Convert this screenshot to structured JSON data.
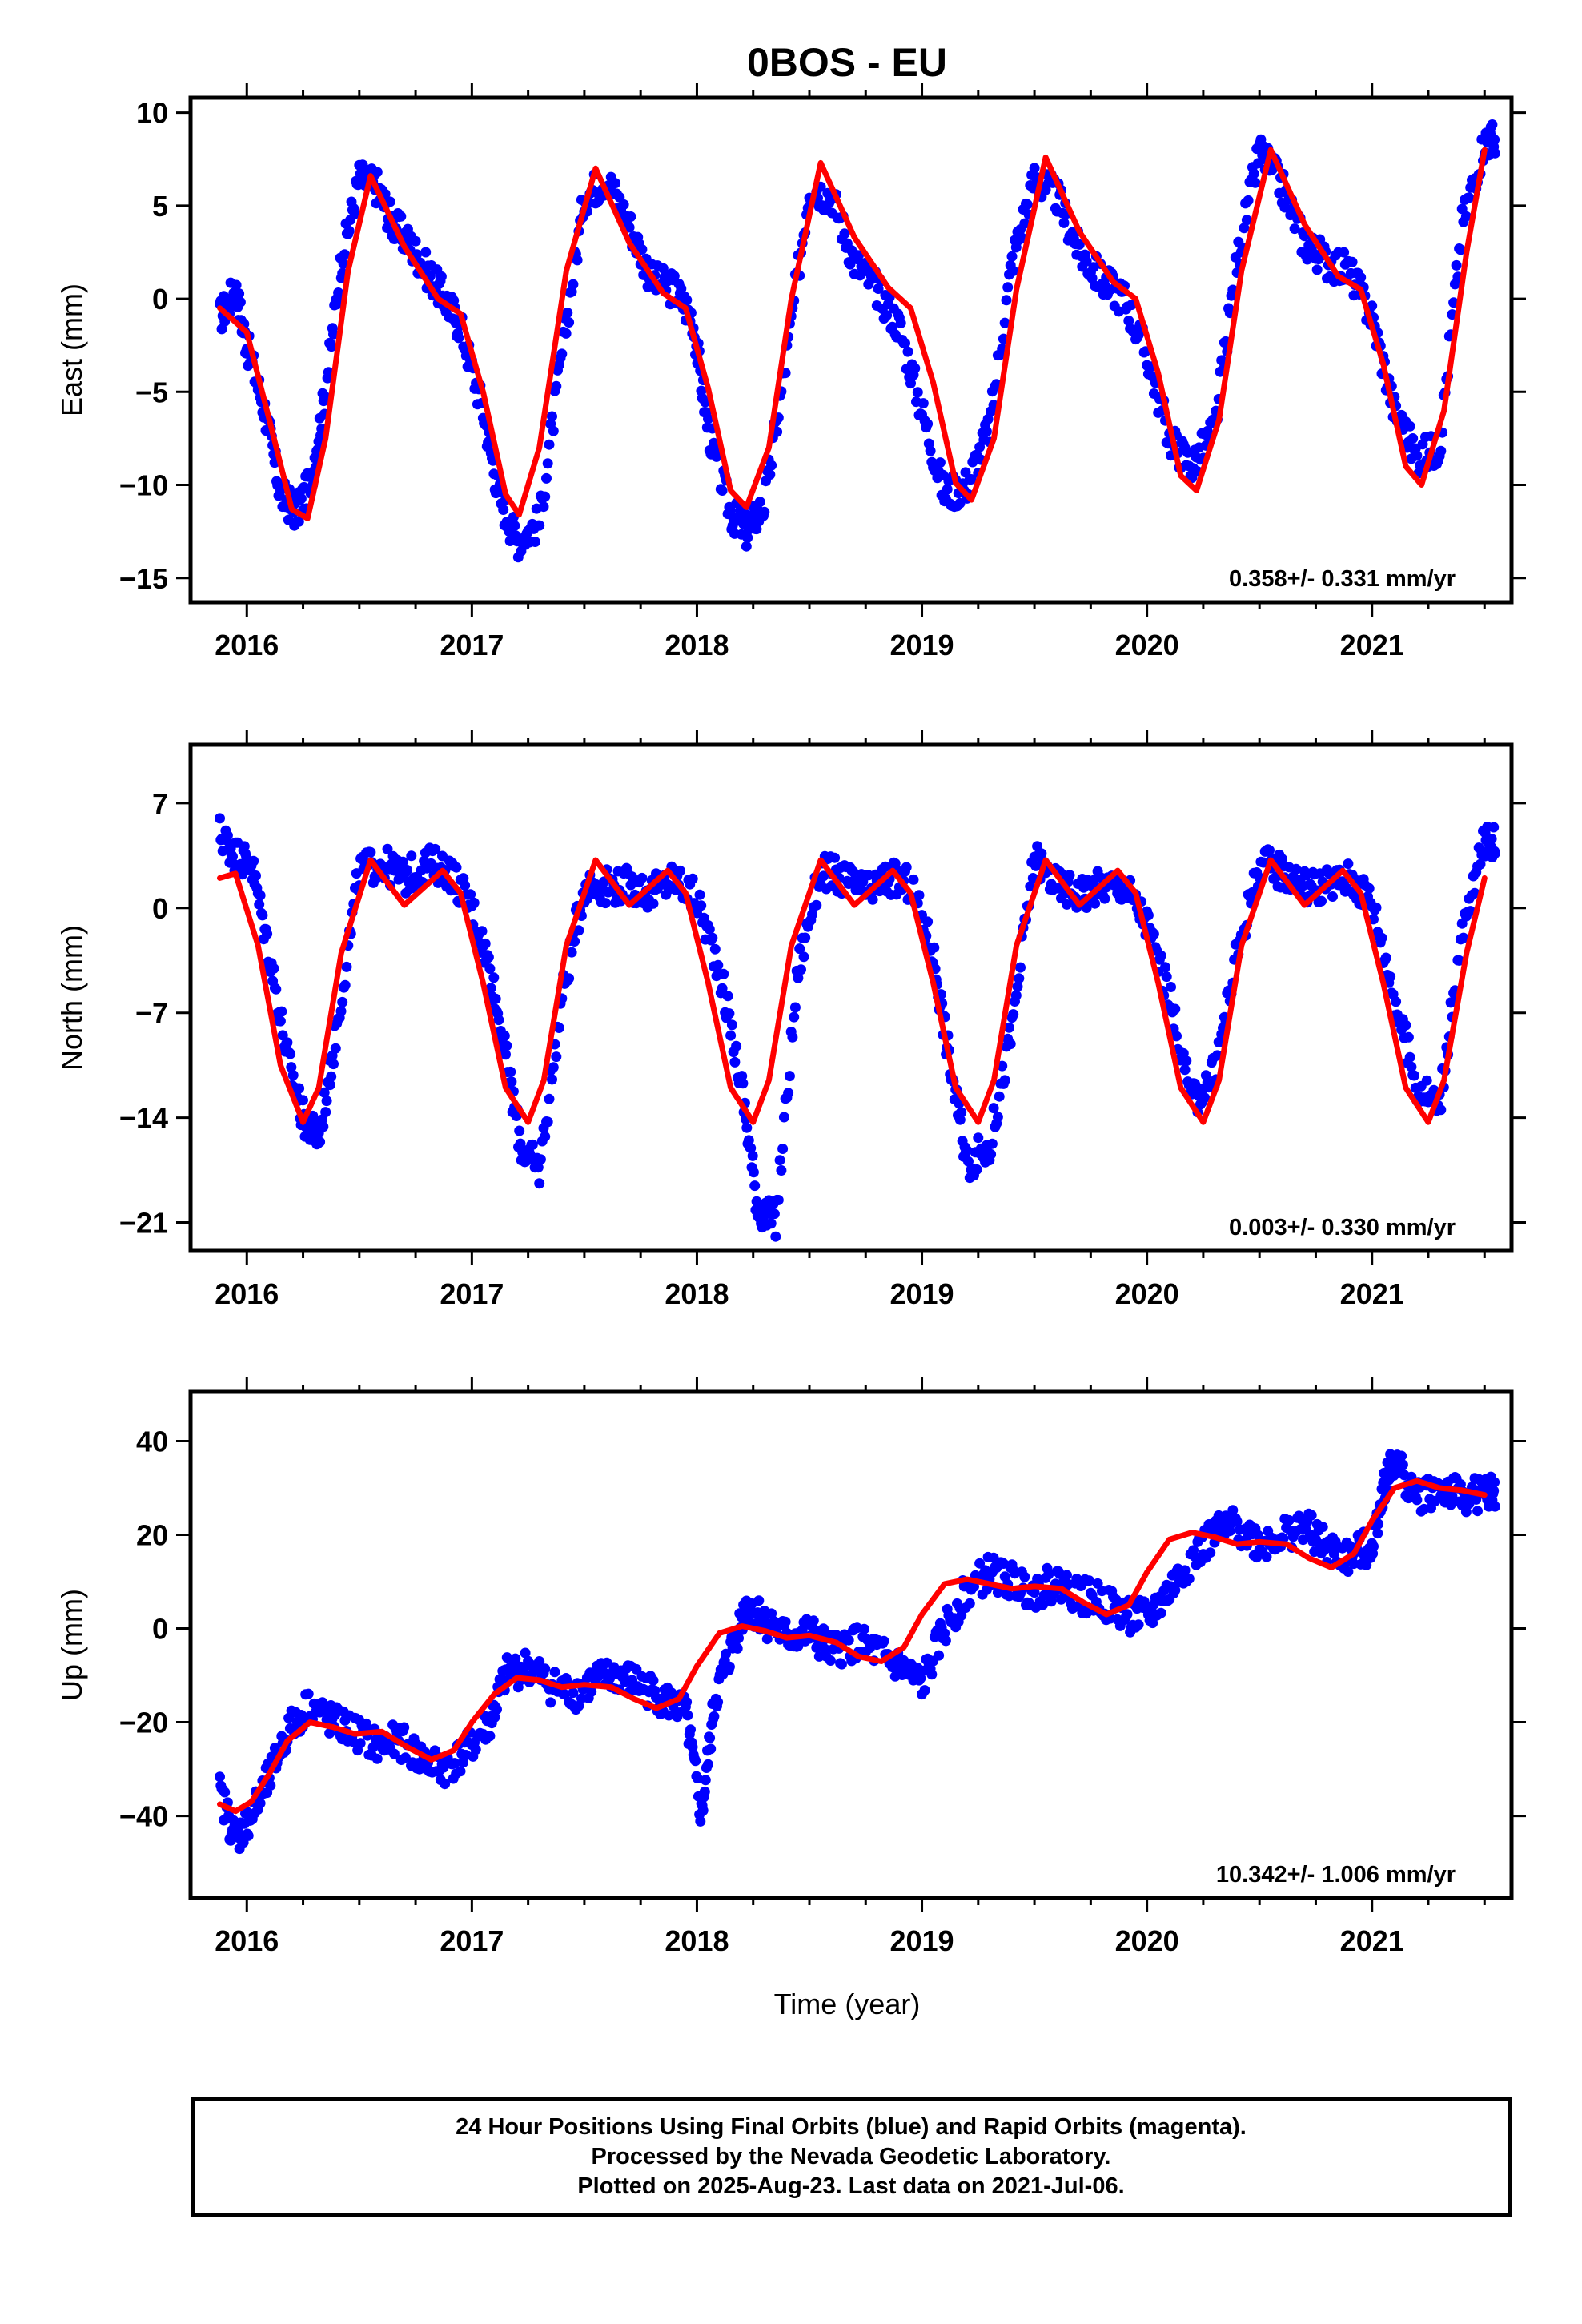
{
  "title": "0BOS - EU",
  "xlabel": "Time (year)",
  "footer": {
    "line1": "24 Hour Positions Using Final Orbits (blue) and Rapid Orbits (magenta).",
    "line2": "Processed by the Nevada Geodetic Laboratory.",
    "line3": "Plotted on 2025-Aug-23. Last data on 2021-Jul-06."
  },
  "colors": {
    "points": "#0000ff",
    "model": "#ff0000",
    "frame": "#000000"
  },
  "chart_data": [
    {
      "type": "scatter",
      "ylabel": "East (mm)",
      "xlim": [
        2015.75,
        2021.62
      ],
      "ylim": [
        -16.3,
        10.8
      ],
      "xticks": [
        "2016",
        "2017",
        "2018",
        "2019",
        "2020",
        "2021"
      ],
      "yticks": [
        "10",
        "5",
        "0",
        "−5",
        "−10",
        "−15"
      ],
      "yticks_values": [
        10,
        5,
        0,
        -5,
        -10,
        -15
      ],
      "rate_label": "0.358+/- 0.331 mm/yr",
      "series": [
        {
          "kind": "points",
          "x": [
            2015.88,
            2015.95,
            2016.0,
            2016.08,
            2016.15,
            2016.22,
            2016.28,
            2016.35,
            2016.42,
            2016.5,
            2016.58,
            2016.65,
            2016.72,
            2016.8,
            2016.88,
            2016.95,
            2017.05,
            2017.12,
            2017.2,
            2017.3,
            2017.4,
            2017.5,
            2017.6,
            2017.7,
            2017.8,
            2017.9,
            2017.98,
            2018.05,
            2018.15,
            2018.22,
            2018.3,
            2018.4,
            2018.5,
            2018.6,
            2018.7,
            2018.8,
            2018.9,
            2019.0,
            2019.1,
            2019.2,
            2019.3,
            2019.4,
            2019.5,
            2019.6,
            2019.7,
            2019.8,
            2019.9,
            2020.0,
            2020.1,
            2020.2,
            2020.3,
            2020.4,
            2020.5,
            2020.6,
            2020.7,
            2020.8,
            2020.9,
            2021.0,
            2021.1,
            2021.2,
            2021.3,
            2021.4,
            2021.5
          ],
          "y": [
            -1.0,
            0.5,
            -2.5,
            -6.0,
            -10.5,
            -11.5,
            -10.0,
            -5.0,
            2.0,
            6.5,
            6.0,
            4.0,
            3.0,
            1.5,
            0.0,
            -1.5,
            -6.0,
            -10.5,
            -13.0,
            -12.0,
            -3.0,
            5.5,
            6.5,
            4.0,
            1.0,
            0.5,
            -1.0,
            -7.0,
            -11.5,
            -12.5,
            -11.0,
            -3.0,
            6.0,
            5.5,
            2.0,
            0.5,
            -1.5,
            -6.0,
            -10.5,
            -10.0,
            -7.0,
            2.0,
            6.5,
            5.5,
            2.5,
            1.0,
            0.0,
            -3.0,
            -7.5,
            -9.0,
            -7.0,
            2.0,
            8.0,
            6.0,
            3.0,
            2.0,
            1.5,
            -1.0,
            -6.0,
            -8.5,
            -8.0,
            4.0,
            8.5
          ]
        },
        {
          "kind": "model",
          "x": [
            2015.88,
            2016.0,
            2016.1,
            2016.2,
            2016.27,
            2016.35,
            2016.45,
            2016.55,
            2016.7,
            2016.85,
            2016.95,
            2017.05,
            2017.15,
            2017.21,
            2017.3,
            2017.42,
            2017.55,
            2017.7,
            2017.85,
            2017.95,
            2018.05,
            2018.15,
            2018.22,
            2018.32,
            2018.42,
            2018.55,
            2018.7,
            2018.85,
            2018.95,
            2019.05,
            2019.15,
            2019.22,
            2019.32,
            2019.42,
            2019.55,
            2019.7,
            2019.85,
            2019.95,
            2020.05,
            2020.15,
            2020.22,
            2020.32,
            2020.42,
            2020.55,
            2020.7,
            2020.85,
            2020.95,
            2021.05,
            2021.15,
            2021.22,
            2021.32,
            2021.42,
            2021.5
          ],
          "y": [
            -0.5,
            -1.8,
            -6.5,
            -11.3,
            -11.8,
            -7.5,
            1.5,
            6.6,
            2.8,
            0.0,
            -0.8,
            -5.0,
            -10.5,
            -11.6,
            -8.0,
            1.5,
            7.0,
            3.0,
            0.3,
            -0.5,
            -4.8,
            -10.3,
            -11.2,
            -8.0,
            0.0,
            7.3,
            3.3,
            0.6,
            -0.5,
            -4.5,
            -9.9,
            -10.8,
            -7.5,
            0.5,
            7.6,
            3.6,
            0.9,
            0.0,
            -4.0,
            -9.5,
            -10.3,
            -6.5,
            1.5,
            8.0,
            4.0,
            1.2,
            0.5,
            -3.5,
            -9.0,
            -10.0,
            -6.0,
            2.5,
            8.0
          ]
        }
      ]
    },
    {
      "type": "scatter",
      "ylabel": "North (mm)",
      "xlim": [
        2015.75,
        2021.62
      ],
      "ylim": [
        -22.9,
        10.9
      ],
      "xticks": [
        "2016",
        "2017",
        "2018",
        "2019",
        "2020",
        "2021"
      ],
      "yticks": [
        "7",
        "0",
        "−7",
        "−14",
        "−21"
      ],
      "yticks_values": [
        7,
        0,
        -7,
        -14,
        -21
      ],
      "rate_label": "0.003+/- 0.330 mm/yr",
      "series": [
        {
          "kind": "points",
          "x": [
            2015.88,
            2015.95,
            2016.02,
            2016.1,
            2016.18,
            2016.25,
            2016.32,
            2016.4,
            2016.5,
            2016.6,
            2016.7,
            2016.8,
            2016.9,
            2017.0,
            2017.08,
            2017.15,
            2017.22,
            2017.3,
            2017.4,
            2017.5,
            2017.6,
            2017.7,
            2017.8,
            2017.9,
            2018.0,
            2018.1,
            2018.2,
            2018.27,
            2018.35,
            2018.45,
            2018.55,
            2018.65,
            2018.75,
            2018.85,
            2018.95,
            2019.05,
            2019.12,
            2019.2,
            2019.3,
            2019.4,
            2019.5,
            2019.6,
            2019.7,
            2019.8,
            2019.9,
            2020.0,
            2020.1,
            2020.2,
            2020.3,
            2020.4,
            2020.5,
            2020.6,
            2020.7,
            2020.8,
            2020.9,
            2021.0,
            2021.1,
            2021.2,
            2021.3,
            2021.4,
            2021.5
          ],
          "y": [
            5.0,
            3.5,
            3.0,
            -3.0,
            -10.0,
            -14.0,
            -15.5,
            -8.0,
            2.5,
            3.0,
            2.0,
            3.0,
            2.5,
            0.0,
            -4.0,
            -10.0,
            -16.0,
            -17.5,
            -6.0,
            1.5,
            1.5,
            1.5,
            1.0,
            2.0,
            0.5,
            -4.0,
            -12.0,
            -20.0,
            -21.0,
            -4.0,
            2.5,
            2.0,
            1.0,
            2.0,
            1.5,
            -3.0,
            -10.0,
            -17.0,
            -16.0,
            -8.0,
            3.5,
            1.5,
            1.0,
            1.5,
            1.5,
            -1.0,
            -6.0,
            -13.0,
            -11.0,
            -3.0,
            3.0,
            2.5,
            1.5,
            1.5,
            2.0,
            0.5,
            -6.0,
            -12.0,
            -13.0,
            -2.0,
            4.5
          ]
        },
        {
          "kind": "model",
          "x": [
            2015.88,
            2015.95,
            2016.05,
            2016.15,
            2016.25,
            2016.32,
            2016.42,
            2016.55,
            2016.7,
            2016.87,
            2016.95,
            2017.05,
            2017.15,
            2017.25,
            2017.32,
            2017.42,
            2017.55,
            2017.7,
            2017.87,
            2017.95,
            2018.05,
            2018.15,
            2018.25,
            2018.32,
            2018.42,
            2018.55,
            2018.7,
            2018.87,
            2018.95,
            2019.05,
            2019.15,
            2019.25,
            2019.32,
            2019.42,
            2019.55,
            2019.7,
            2019.87,
            2019.95,
            2020.05,
            2020.15,
            2020.25,
            2020.32,
            2020.42,
            2020.55,
            2020.7,
            2020.87,
            2020.95,
            2021.05,
            2021.15,
            2021.25,
            2021.32,
            2021.42,
            2021.5
          ],
          "y": [
            2.0,
            2.3,
            -2.5,
            -10.5,
            -14.3,
            -12.0,
            -3.0,
            3.2,
            0.2,
            2.5,
            1.0,
            -5.0,
            -12.0,
            -14.3,
            -11.5,
            -2.5,
            3.2,
            0.2,
            2.5,
            1.0,
            -5.0,
            -12.0,
            -14.3,
            -11.5,
            -2.5,
            3.2,
            0.2,
            2.5,
            1.0,
            -5.0,
            -12.0,
            -14.3,
            -11.5,
            -2.5,
            3.2,
            0.2,
            2.5,
            1.0,
            -5.0,
            -12.0,
            -14.3,
            -11.5,
            -2.5,
            3.2,
            0.2,
            2.5,
            1.0,
            -5.0,
            -12.0,
            -14.3,
            -11.5,
            -3.0,
            2.0
          ]
        }
      ]
    },
    {
      "type": "scatter",
      "ylabel": "Up (mm)",
      "xlim": [
        2015.75,
        2021.62
      ],
      "ylim": [
        -57.5,
        50.5
      ],
      "xticks": [
        "2016",
        "2017",
        "2018",
        "2019",
        "2020",
        "2021"
      ],
      "yticks": [
        "40",
        "20",
        "0",
        "−20",
        "−40"
      ],
      "yticks_values": [
        40,
        20,
        0,
        -20,
        -40
      ],
      "rate_label": "10.342+/- 1.006 mm/yr",
      "series": [
        {
          "kind": "points",
          "x": [
            2015.88,
            2015.95,
            2016.02,
            2016.1,
            2016.18,
            2016.28,
            2016.38,
            2016.48,
            2016.58,
            2016.68,
            2016.78,
            2016.88,
            2016.98,
            2017.08,
            2017.15,
            2017.25,
            2017.35,
            2017.45,
            2017.55,
            2017.65,
            2017.75,
            2017.85,
            2017.95,
            2018.02,
            2018.08,
            2018.15,
            2018.22,
            2018.3,
            2018.4,
            2018.5,
            2018.6,
            2018.7,
            2018.8,
            2018.9,
            2019.0,
            2019.1,
            2019.2,
            2019.3,
            2019.4,
            2019.5,
            2019.6,
            2019.7,
            2019.8,
            2019.9,
            2020.0,
            2020.1,
            2020.2,
            2020.3,
            2020.4,
            2020.5,
            2020.6,
            2020.7,
            2020.8,
            2020.9,
            2021.0,
            2021.05,
            2021.1,
            2021.2,
            2021.3,
            2021.4,
            2021.5
          ],
          "y": [
            -35.0,
            -45.0,
            -40.0,
            -32.0,
            -22.0,
            -16.0,
            -20.0,
            -22.0,
            -25.0,
            -24.0,
            -28.0,
            -30.0,
            -26.0,
            -20.0,
            -10.0,
            -8.0,
            -12.0,
            -14.0,
            -11.0,
            -10.0,
            -12.0,
            -15.0,
            -18.0,
            -40.0,
            -15.0,
            -5.0,
            5.0,
            2.0,
            -2.0,
            -1.0,
            -5.0,
            -3.0,
            -5.0,
            -8.0,
            -12.0,
            0.0,
            8.0,
            12.0,
            10.0,
            8.0,
            10.0,
            7.0,
            6.0,
            3.0,
            2.0,
            8.0,
            15.0,
            20.0,
            22.0,
            18.0,
            20.0,
            22.0,
            17.0,
            15.0,
            18.0,
            30.0,
            36.0,
            28.0,
            30.0,
            28.0,
            29.0
          ]
        },
        {
          "kind": "model",
          "x": [
            2015.88,
            2015.95,
            2016.02,
            2016.1,
            2016.18,
            2016.28,
            2016.38,
            2016.48,
            2016.6,
            2016.72,
            2016.82,
            2016.92,
            2017.0,
            2017.1,
            2017.2,
            2017.3,
            2017.4,
            2017.5,
            2017.62,
            2017.72,
            2017.82,
            2017.92,
            2018.0,
            2018.1,
            2018.2,
            2018.3,
            2018.4,
            2018.5,
            2018.62,
            2018.72,
            2018.82,
            2018.92,
            2019.0,
            2019.1,
            2019.2,
            2019.3,
            2019.4,
            2019.5,
            2019.62,
            2019.72,
            2019.82,
            2019.92,
            2020.0,
            2020.1,
            2020.2,
            2020.3,
            2020.4,
            2020.5,
            2020.62,
            2020.72,
            2020.82,
            2020.92,
            2021.0,
            2021.1,
            2021.2,
            2021.3,
            2021.4,
            2021.5
          ],
          "y": [
            -37.5,
            -39.0,
            -37.0,
            -31.0,
            -24.0,
            -20.0,
            -21.0,
            -22.5,
            -22.0,
            -25.5,
            -28.0,
            -26.0,
            -20.0,
            -14.0,
            -10.5,
            -11.0,
            -12.5,
            -12.0,
            -12.5,
            -15.0,
            -17.0,
            -15.0,
            -8.0,
            -1.0,
            0.5,
            -0.5,
            -2.0,
            -1.5,
            -3.0,
            -6.0,
            -7.0,
            -4.0,
            3.0,
            9.5,
            10.5,
            9.5,
            8.5,
            9.0,
            8.5,
            5.5,
            3.0,
            5.0,
            12.0,
            19.0,
            20.5,
            19.5,
            18.0,
            18.5,
            18.0,
            15.0,
            13.0,
            16.0,
            23.0,
            30.0,
            31.5,
            30.0,
            29.5,
            28.5
          ]
        }
      ]
    }
  ]
}
